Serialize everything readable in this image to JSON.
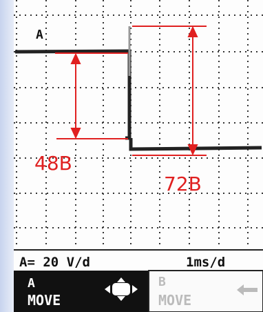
{
  "screen": {
    "channel_label": "A",
    "annotations": [
      "48B",
      "72B"
    ]
  },
  "status_bar": {
    "volts_per_div": "A= 20 V/d",
    "time_per_div": "1ms/d"
  },
  "buttons": [
    {
      "line1": "A",
      "line2": "MOVE"
    },
    {
      "line1": "B",
      "line2": "MOVE"
    }
  ]
}
